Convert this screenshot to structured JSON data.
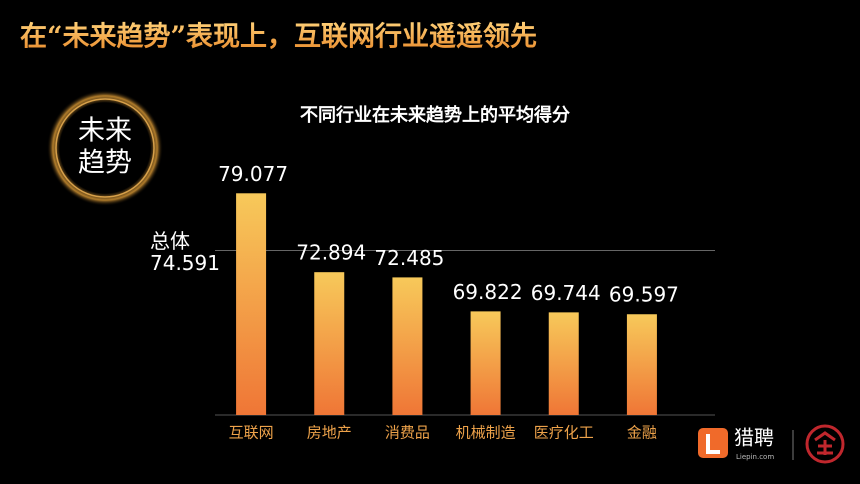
{
  "header": {
    "title": "在“未来趋势”表现上，互联网行业遥遥领先"
  },
  "badge": {
    "lines": [
      "未来",
      "趋势"
    ]
  },
  "chart_data": {
    "type": "bar",
    "title": "不同行业在未来趋势上的平均得分",
    "categories": [
      "互联网",
      "房地产",
      "消费品",
      "机械制造",
      "医疗化工",
      "金融"
    ],
    "values": [
      79.077,
      72.894,
      72.485,
      69.822,
      69.744,
      69.597
    ],
    "gradient": [
      "#f7c95a",
      "#ef7636"
    ],
    "ylim": [
      61.7,
      82
    ],
    "reference": {
      "label": "总体",
      "value": 74.591
    }
  },
  "logo": {
    "name": "猎聘",
    "site": "Liepin.com"
  }
}
